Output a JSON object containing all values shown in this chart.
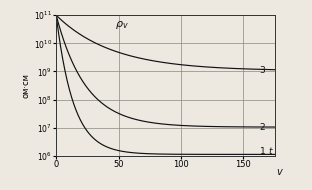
{
  "ylabel_text": "ом·см",
  "xlabel_text": "v",
  "t_label": "t",
  "rho_label": "ρv",
  "xlim": [
    0,
    175
  ],
  "ylim_log_min": 6,
  "ylim_log_max": 11,
  "xticks": [
    0,
    50,
    100,
    150
  ],
  "yticks_exp": [
    6,
    7,
    8,
    9,
    10,
    11
  ],
  "curve1_k": 0.072,
  "curve1_end": 6.05,
  "curve2_k": 0.042,
  "curve2_end": 7.02,
  "curve3_k": 0.022,
  "curve3_end": 9.02,
  "start_exp": 11.0,
  "label1": "1",
  "label2": "2",
  "label3": "3",
  "bg_color": "#ede8e0",
  "line_color": "#111111",
  "grid_color": "#888880",
  "grid_lw": 0.5
}
